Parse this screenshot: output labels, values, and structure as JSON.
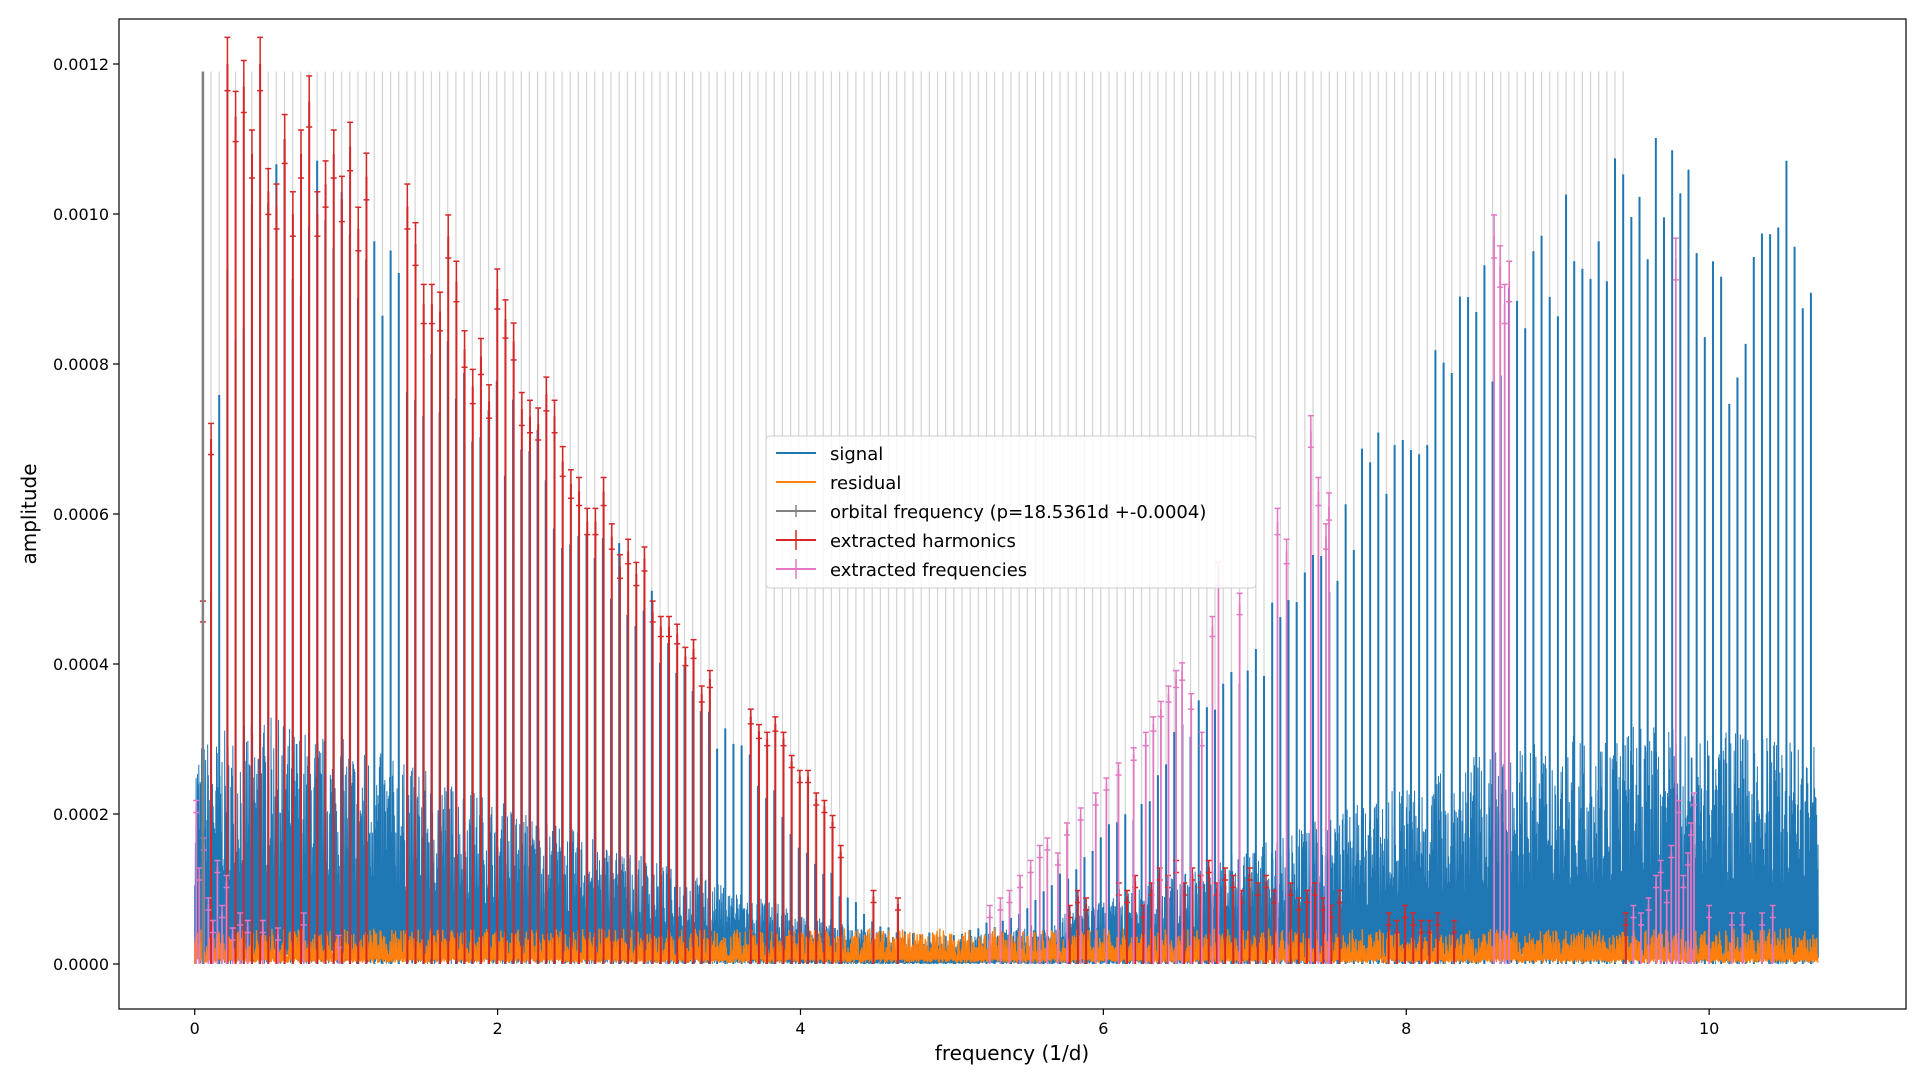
{
  "chart_data": {
    "type": "line",
    "title": "",
    "xlabel": "frequency (1/d)",
    "ylabel": "amplitude",
    "xlim": [
      -0.5,
      11.3
    ],
    "ylim": [
      -6e-05,
      0.00126
    ],
    "x_ticks": [
      {
        "value": 0,
        "label": "0"
      },
      {
        "value": 2,
        "label": "2"
      },
      {
        "value": 4,
        "label": "4"
      },
      {
        "value": 6,
        "label": "6"
      },
      {
        "value": 8,
        "label": "8"
      },
      {
        "value": 10,
        "label": "10"
      }
    ],
    "y_ticks": [
      {
        "value": 0,
        "label": "0.0000"
      },
      {
        "value": 0.0002,
        "label": "0.0002"
      },
      {
        "value": 0.0004,
        "label": "0.0004"
      },
      {
        "value": 0.0006,
        "label": "0.0006"
      },
      {
        "value": 0.0008,
        "label": "0.0008"
      },
      {
        "value": 0.001,
        "label": "0.0010"
      },
      {
        "value": 0.0012,
        "label": "0.0012"
      }
    ],
    "grid": false,
    "legend_position": "center",
    "orbital_frequency": {
      "period_label": "p=18.5361d +-0.0004",
      "harmonic_spacing": 0.0539,
      "harmonic_x_max": 9.45,
      "line_height": 0.00119
    },
    "series": [
      {
        "name": "signal",
        "color": "#1f77b4",
        "style": "line",
        "peak_envelope": {
          "x": [
            0.0,
            0.2,
            0.5,
            1.0,
            1.5,
            2.0,
            2.5,
            3.0,
            3.5,
            4.0,
            4.3,
            4.6,
            5.0,
            5.4,
            5.8,
            6.2,
            6.6,
            7.0,
            7.4,
            7.8,
            8.2,
            8.6,
            9.0,
            9.4,
            9.7,
            9.9,
            10.1,
            10.4,
            10.7
          ],
          "y": [
            0.0002,
            0.00093,
            0.00112,
            0.0011,
            0.0009,
            0.00083,
            0.00065,
            0.00052,
            0.00033,
            0.00018,
            0.0001,
            5e-05,
            4e-05,
            7e-05,
            0.00014,
            0.00023,
            0.00035,
            0.00045,
            0.00058,
            0.00072,
            0.00087,
            0.00095,
            0.00102,
            0.00108,
            0.00113,
            0.00107,
            0.00091,
            0.00112,
            0.00108
          ]
        },
        "noise_envelope": {
          "x": [
            0.0,
            0.5,
            1.0,
            2.0,
            3.0,
            4.0,
            4.8,
            5.5,
            6.5,
            7.5,
            8.5,
            9.5,
            10.7
          ],
          "y": [
            0.0003,
            0.00033,
            0.0003,
            0.00022,
            0.00014,
            7e-05,
            3e-05,
            5e-05,
            0.00012,
            0.0002,
            0.00028,
            0.00032,
            0.0003
          ]
        }
      },
      {
        "name": "residual",
        "color": "#ff7f0e",
        "style": "line",
        "typical_amplitude": 2.8e-05,
        "x_range": [
          0.0,
          10.72
        ]
      },
      {
        "name": "orbital frequency (p=18.5361d +-0.0004)",
        "color": "#808080",
        "style": "errorbar",
        "x": [
          0.054
        ],
        "y": [
          0.00119
        ]
      },
      {
        "name": "extracted harmonics",
        "color": "#d62728",
        "style": "errorbar",
        "x": [
          0.054,
          0.108,
          0.216,
          0.27,
          0.324,
          0.378,
          0.432,
          0.486,
          0.54,
          0.594,
          0.648,
          0.702,
          0.756,
          0.81,
          0.864,
          0.918,
          0.972,
          1.026,
          1.08,
          1.134,
          1.404,
          1.458,
          1.512,
          1.566,
          1.62,
          1.674,
          1.728,
          1.782,
          1.836,
          1.89,
          1.944,
          1.998,
          2.052,
          2.106,
          2.16,
          2.214,
          2.268,
          2.322,
          2.376,
          2.43,
          2.484,
          2.538,
          2.592,
          2.646,
          2.7,
          2.754,
          2.808,
          2.862,
          2.916,
          2.97,
          3.024,
          3.078,
          3.132,
          3.186,
          3.24,
          3.294,
          3.348,
          3.402,
          3.672,
          3.726,
          3.78,
          3.834,
          3.888,
          3.942,
          3.996,
          4.05,
          4.104,
          4.158,
          4.212,
          4.266,
          4.482,
          4.644,
          5.778,
          5.832,
          5.886,
          6.102,
          6.156,
          6.21,
          6.264,
          6.318,
          6.372,
          6.426,
          6.48,
          6.534,
          6.588,
          6.642,
          6.696,
          6.75,
          6.804,
          6.858,
          6.912,
          6.966,
          7.02,
          7.074,
          7.128,
          7.236,
          7.29,
          7.344,
          7.398,
          7.452,
          7.506,
          7.56,
          7.884,
          7.938,
          7.992,
          8.046,
          8.1,
          8.154,
          8.208,
          8.316,
          9.45
        ],
        "y": [
          0.00047,
          0.0007,
          0.0012,
          0.00113,
          0.00117,
          0.00108,
          0.0012,
          0.00103,
          0.00101,
          0.0011,
          0.001,
          0.00108,
          0.00115,
          0.001,
          0.00104,
          0.00108,
          0.00102,
          0.00109,
          0.00098,
          0.00105,
          0.00101,
          0.00096,
          0.00088,
          0.00088,
          0.00087,
          0.00097,
          0.00091,
          0.00082,
          0.00077,
          0.00081,
          0.00075,
          0.0009,
          0.00086,
          0.00083,
          0.00074,
          0.00073,
          0.00072,
          0.00076,
          0.00073,
          0.00067,
          0.00064,
          0.00063,
          0.00059,
          0.00059,
          0.00063,
          0.00057,
          0.00053,
          0.00055,
          0.00052,
          0.00054,
          0.00047,
          0.00045,
          0.00045,
          0.00044,
          0.00041,
          0.00042,
          0.00036,
          0.00038,
          0.00033,
          0.00031,
          0.0003,
          0.00032,
          0.0003,
          0.00027,
          0.00025,
          0.00025,
          0.00022,
          0.00021,
          0.00019,
          0.00015,
          9e-05,
          8e-05,
          7e-05,
          9e-05,
          8e-05,
          0.0001,
          9e-05,
          0.00011,
          7e-05,
          0.0001,
          0.00012,
          0.00011,
          0.00013,
          0.0001,
          0.00012,
          0.00011,
          0.00013,
          0.0001,
          0.00012,
          0.00011,
          9e-05,
          0.00012,
          0.0001,
          0.00011,
          9e-05,
          0.0001,
          8e-05,
          9e-05,
          0.0001,
          8e-05,
          7e-05,
          9e-05,
          6e-05,
          5e-05,
          7e-05,
          6e-05,
          5e-05,
          5e-05,
          6e-05,
          5e-05,
          6e-05
        ]
      },
      {
        "name": "extracted frequencies",
        "color": "#e377c2",
        "style": "errorbar",
        "x": [
          0.01,
          0.03,
          0.06,
          0.09,
          0.12,
          0.15,
          0.18,
          0.21,
          0.25,
          0.3,
          0.35,
          0.45,
          0.55,
          0.72,
          0.95,
          5.25,
          5.32,
          5.38,
          5.45,
          5.52,
          5.58,
          5.63,
          5.7,
          5.76,
          5.85,
          5.95,
          6.02,
          6.1,
          6.2,
          6.28,
          6.33,
          6.38,
          6.43,
          6.48,
          6.52,
          6.58,
          6.65,
          6.72,
          6.76,
          6.9,
          7.15,
          7.21,
          7.37,
          7.42,
          7.47,
          7.49,
          8.58,
          8.62,
          8.65,
          8.68,
          9.5,
          9.55,
          9.6,
          9.65,
          9.68,
          9.72,
          9.75,
          9.78,
          9.8,
          9.83,
          9.86,
          9.88,
          9.9,
          10.0,
          10.15,
          10.22,
          10.35,
          10.42
        ],
        "y": [
          0.00021,
          0.00012,
          0.00016,
          8e-05,
          5e-05,
          0.00013,
          7e-05,
          0.00011,
          4e-05,
          6e-05,
          5e-05,
          5e-05,
          4e-05,
          6e-05,
          3e-05,
          7e-05,
          8e-05,
          9e-05,
          0.00011,
          0.00013,
          0.00015,
          0.00016,
          0.00014,
          0.00018,
          0.0002,
          0.00022,
          0.00024,
          0.00026,
          0.00028,
          0.0003,
          0.00032,
          0.00034,
          0.00036,
          0.00038,
          0.00039,
          0.00035,
          0.0003,
          0.00045,
          0.00052,
          0.00048,
          0.00059,
          0.00055,
          0.00071,
          0.00063,
          0.00057,
          0.00061,
          0.00097,
          0.00093,
          0.00088,
          0.00091,
          7e-05,
          6e-05,
          8e-05,
          0.00011,
          0.00013,
          9e-05,
          0.00015,
          0.00094,
          0.00021,
          0.00011,
          0.00014,
          0.00018,
          0.00022,
          7e-05,
          6e-05,
          6e-05,
          6e-05,
          7e-05
        ]
      }
    ]
  }
}
